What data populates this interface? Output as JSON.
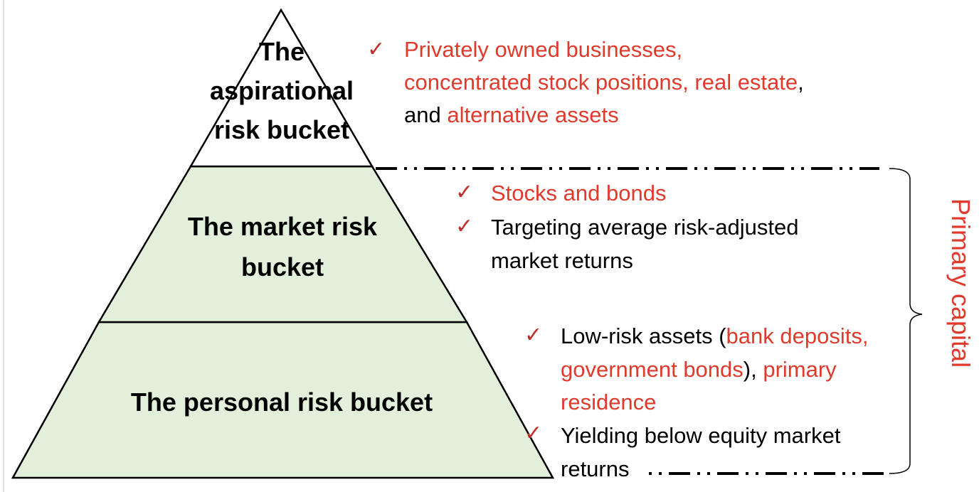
{
  "buckets": {
    "top": {
      "lines": [
        "The",
        "aspirational",
        "risk bucket"
      ]
    },
    "middle": {
      "lines": [
        "The market risk",
        "bucket"
      ]
    },
    "bottom": {
      "lines": [
        "The personal risk bucket"
      ]
    }
  },
  "aspirational_bullets": {
    "line1": "Privately owned businesses,",
    "line2_a": "concentrated stock positions, real estate",
    "line2_b": ",",
    "line3_a": "and ",
    "line3_b": "alternative assets"
  },
  "market_bullets": {
    "item1": "Stocks and bonds",
    "item2_line1": "Targeting average risk-adjusted",
    "item2_line2": "market returns"
  },
  "personal_bullets": {
    "item1_line1_a": "Low-risk assets (",
    "item1_line1_b": "bank deposits,",
    "item1_line2_a": "government bonds",
    "item1_line2_b": "), ",
    "item1_line2_c": "primary",
    "item1_line3": "residence",
    "item2_line1": "Yielding below equity market",
    "item2_line2": "returns"
  },
  "check_symbol": "✓",
  "bracket_label": "Primary capital",
  "colors": {
    "accent": "#e03a2c",
    "check": "#c0302a",
    "fill_lower": "#e2efda",
    "fill_top": "#ffffff",
    "outline": "#000000"
  }
}
